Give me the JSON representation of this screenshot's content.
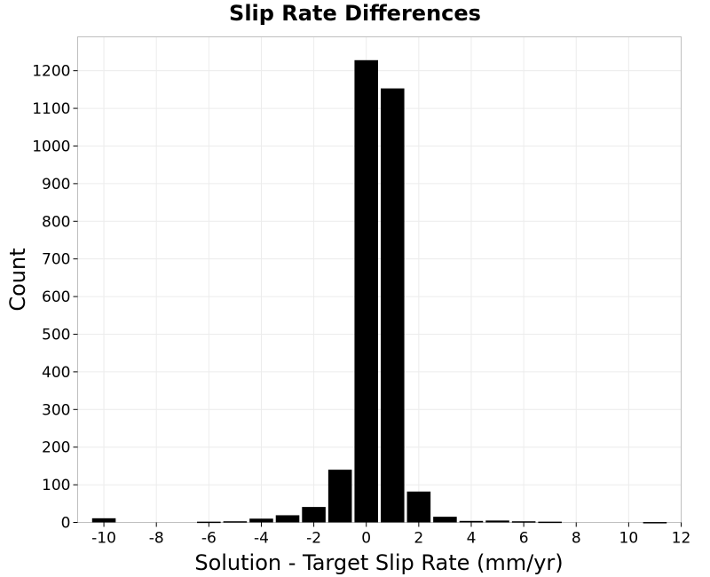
{
  "chart_data": {
    "type": "bar",
    "title": "Slip Rate Differences",
    "xlabel": "Solution - Target Slip Rate (mm/yr)",
    "ylabel": "Count",
    "xlim": [
      -11,
      12
    ],
    "ylim": [
      0,
      1290
    ],
    "x_ticks": [
      -10,
      -8,
      -6,
      -4,
      -2,
      0,
      2,
      4,
      6,
      8,
      10,
      12
    ],
    "y_ticks": [
      0,
      100,
      200,
      300,
      400,
      500,
      600,
      700,
      800,
      900,
      1000,
      1100,
      1200
    ],
    "bin_width": 1,
    "bars": [
      {
        "x": -10,
        "value": 11
      },
      {
        "x": -9,
        "value": 0
      },
      {
        "x": -8,
        "value": 0
      },
      {
        "x": -7,
        "value": 0
      },
      {
        "x": -6,
        "value": 2
      },
      {
        "x": -5,
        "value": 3
      },
      {
        "x": -4,
        "value": 10
      },
      {
        "x": -3,
        "value": 19
      },
      {
        "x": -2,
        "value": 41
      },
      {
        "x": -1,
        "value": 140
      },
      {
        "x": 0,
        "value": 1228
      },
      {
        "x": 1,
        "value": 1153
      },
      {
        "x": 2,
        "value": 82
      },
      {
        "x": 3,
        "value": 15
      },
      {
        "x": 4,
        "value": 4
      },
      {
        "x": 5,
        "value": 5
      },
      {
        "x": 6,
        "value": 3
      },
      {
        "x": 7,
        "value": 2
      },
      {
        "x": 8,
        "value": 0
      },
      {
        "x": 9,
        "value": 0
      },
      {
        "x": 10,
        "value": 0
      },
      {
        "x": 11,
        "value": 1
      }
    ],
    "bar_color": "#000000",
    "grid": true,
    "grid_color": "#ececec",
    "frame_color": "#bfbfbf"
  }
}
